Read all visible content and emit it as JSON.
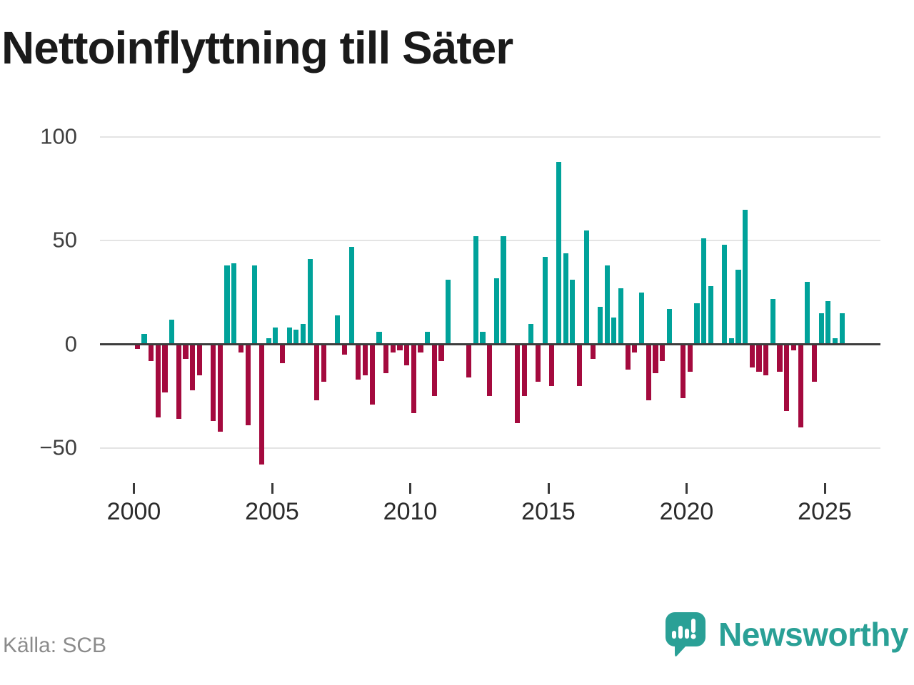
{
  "title": "Nettoinflyttning till Säter",
  "source": "Källa: SCB",
  "logo": {
    "brand": "Newsworthy",
    "color": "#2aa096"
  },
  "chart_data": {
    "type": "bar",
    "title": "Nettoinflyttning till Säter",
    "frequency": "quarterly",
    "x_start": "2000 Q1",
    "x_end": "2025 Q3",
    "x_tick_labels": [
      "2000",
      "2005",
      "2010",
      "2015",
      "2020",
      "2025"
    ],
    "y_axis": [
      {
        "label": "100",
        "value": 100
      },
      {
        "label": "50",
        "value": 50
      },
      {
        "label": "0",
        "value": 0
      },
      {
        "label": "−50",
        "value": -50
      }
    ],
    "ylim": [
      -60,
      105
    ],
    "grid": "horizontal",
    "legend": "none",
    "colors": {
      "positive": "#00a29a",
      "negative": "#a40a3e"
    },
    "values": [
      -2,
      5,
      -8,
      -35,
      -23,
      12,
      -36,
      -7,
      -22,
      -15,
      0,
      -37,
      -42,
      38,
      39,
      -4,
      -39,
      38,
      -58,
      3,
      8,
      -9,
      8,
      7,
      10,
      41,
      -27,
      -18,
      0,
      14,
      -5,
      47,
      -17,
      -15,
      -29,
      6,
      -14,
      -4,
      -3,
      -10,
      -33,
      -4,
      6,
      -25,
      -8,
      31,
      0,
      0,
      -16,
      52,
      6,
      -25,
      32,
      52,
      0,
      -38,
      -25,
      10,
      -18,
      42,
      -20,
      88,
      44,
      31,
      -20,
      55,
      -7,
      18,
      38,
      13,
      27,
      -12,
      -4,
      25,
      -27,
      -14,
      -8,
      17,
      0,
      -26,
      -13,
      20,
      51,
      28,
      0,
      48,
      3,
      36,
      65,
      -11,
      -13,
      -15,
      22,
      -13,
      -32,
      -3,
      -40,
      30,
      -18,
      15,
      21,
      3,
      15
    ]
  }
}
